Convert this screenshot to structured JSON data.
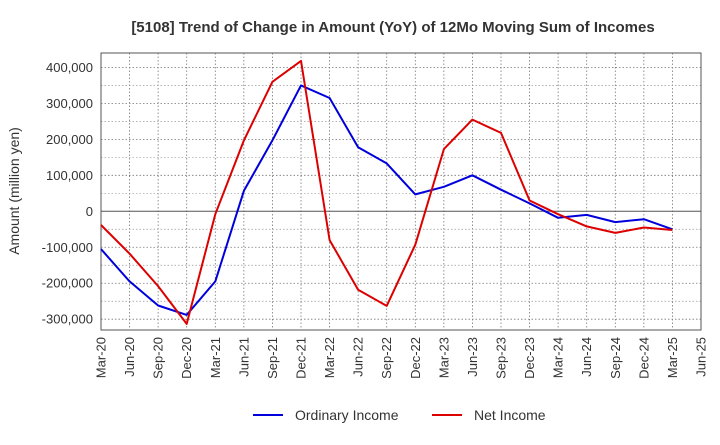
{
  "chart_data": {
    "type": "line",
    "title": "[5108]  Trend of Change in Amount (YoY) of 12Mo Moving Sum of Incomes",
    "xlabel": "",
    "ylabel": "Amount (million yen)",
    "ylim": [
      -330000,
      440000
    ],
    "y_ticks": [
      -300000,
      -200000,
      -100000,
      0,
      100000,
      200000,
      300000,
      400000
    ],
    "y_tick_labels": [
      "-300,000",
      "-200,000",
      "-100,000",
      "0",
      "100,000",
      "200,000",
      "300,000",
      "400,000"
    ],
    "categories": [
      "Mar-20",
      "Jun-20",
      "Sep-20",
      "Dec-20",
      "Mar-21",
      "Jun-21",
      "Sep-21",
      "Dec-21",
      "Mar-22",
      "Jun-22",
      "Sep-22",
      "Dec-22",
      "Mar-23",
      "Jun-23",
      "Sep-23",
      "Dec-23",
      "Mar-24",
      "Jun-24",
      "Sep-24",
      "Dec-24",
      "Mar-25",
      "Jun-25"
    ],
    "grid": true,
    "legend_position": "bottom",
    "series": [
      {
        "name": "Ordinary Income",
        "color": "#0000dd",
        "values": [
          -105000,
          -195000,
          -262000,
          -288000,
          -195000,
          57000,
          197000,
          350000,
          315000,
          178000,
          133000,
          47000,
          68000,
          100000,
          60000,
          22000,
          -18000,
          -10000,
          -30000,
          -22000,
          -50000,
          null
        ]
      },
      {
        "name": "Net Income",
        "color": "#dd0000",
        "values": [
          -38000,
          -118000,
          -208000,
          -313000,
          -8000,
          197000,
          360000,
          418000,
          -80000,
          -218000,
          -263000,
          -93000,
          173000,
          255000,
          218000,
          30000,
          -8000,
          -42000,
          -60000,
          -45000,
          -52000,
          null
        ]
      }
    ]
  }
}
